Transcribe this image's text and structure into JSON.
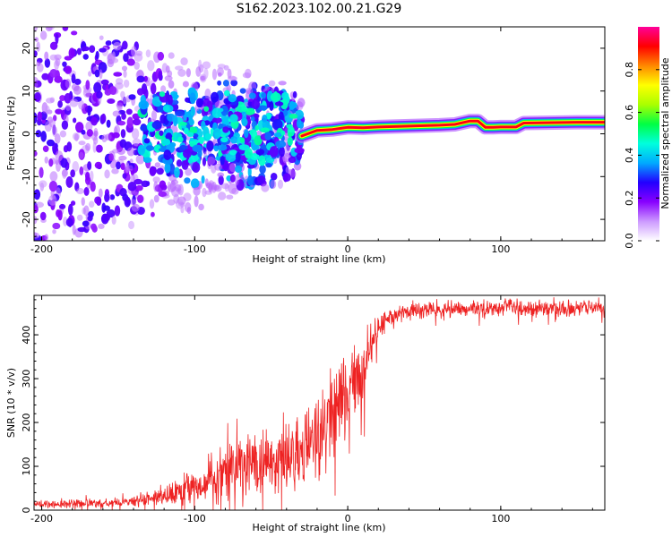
{
  "title": "S162.2023.102.00.21.G29",
  "chart_data": [
    {
      "type": "heatmap",
      "xlabel": "Height of straight line (km)",
      "ylabel": "Frequency (Hz)",
      "xlim": [
        -205,
        168
      ],
      "ylim": [
        -25,
        25
      ],
      "x_ticks": [
        -200,
        -100,
        0,
        100
      ],
      "y_ticks": [
        -20,
        -10,
        0,
        10,
        20
      ],
      "colorbar": {
        "label": "Normalized spectral amplitude",
        "range": [
          0,
          1
        ],
        "ticks": [
          "0.0",
          "0.2",
          "0.4",
          "0.6",
          "0.8"
        ],
        "tick_values": [
          0.0,
          0.2,
          0.4,
          0.6,
          0.8
        ],
        "colors": [
          "#ffffff",
          "#cc99ff",
          "#8800ff",
          "#2200ff",
          "#00aaff",
          "#00ffdd",
          "#00ff44",
          "#aaff00",
          "#ffff00",
          "#ff8800",
          "#ff0000",
          "#ff0099"
        ]
      },
      "signal_trace": {
        "x": [
          -30,
          -20,
          -10,
          0,
          10,
          20,
          40,
          60,
          70,
          80,
          85,
          90,
          95,
          100,
          110,
          115,
          130,
          150,
          168
        ],
        "y": [
          -0.5,
          0.8,
          1.0,
          1.5,
          1.4,
          1.6,
          1.8,
          2.0,
          2.2,
          3.0,
          3.0,
          1.5,
          1.5,
          1.6,
          1.6,
          2.5,
          2.6,
          2.7,
          2.7
        ]
      }
    },
    {
      "type": "line",
      "xlabel": "Height of straight line (km)",
      "ylabel": "SNR (10 * v/v)",
      "xlim": [
        -205,
        168
      ],
      "ylim": [
        0,
        490
      ],
      "x_ticks": [
        -200,
        -100,
        0,
        100
      ],
      "y_ticks": [
        0,
        100,
        200,
        300,
        400
      ],
      "color": "#ee2222",
      "series": [
        {
          "name": "SNR",
          "x": [
            -205,
            -190,
            -175,
            -160,
            -150,
            -140,
            -130,
            -120,
            -110,
            -100,
            -90,
            -80,
            -70,
            -60,
            -50,
            -40,
            -30,
            -20,
            -15,
            -10,
            -5,
            0,
            5,
            10,
            15,
            20,
            25,
            30,
            40,
            50,
            60,
            70,
            80,
            90,
            100,
            105,
            110,
            120,
            130,
            140,
            150,
            160,
            168
          ],
          "values": [
            13,
            14,
            15,
            16,
            17,
            20,
            25,
            30,
            40,
            55,
            70,
            85,
            95,
            105,
            110,
            115,
            135,
            160,
            190,
            210,
            240,
            265,
            290,
            320,
            380,
            420,
            435,
            445,
            450,
            455,
            458,
            458,
            460,
            458,
            462,
            470,
            458,
            460,
            458,
            460,
            460,
            460,
            460
          ],
          "spread": [
            6,
            8,
            8,
            8,
            8,
            10,
            12,
            18,
            25,
            32,
            40,
            50,
            58,
            60,
            62,
            65,
            75,
            85,
            90,
            90,
            80,
            75,
            70,
            70,
            45,
            25,
            18,
            15,
            15,
            15,
            15,
            15,
            15,
            15,
            15,
            15,
            15,
            15,
            15,
            15,
            15,
            15,
            15
          ]
        }
      ]
    }
  ]
}
